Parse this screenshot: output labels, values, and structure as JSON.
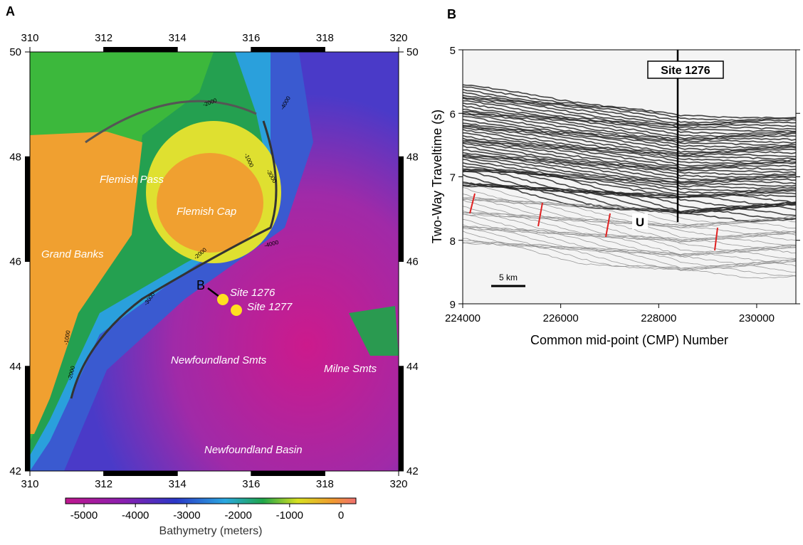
{
  "panel_a": {
    "label": "A",
    "xlim": [
      310,
      320
    ],
    "ylim": [
      42,
      50
    ],
    "xticks": [
      310,
      312,
      314,
      316,
      318,
      320
    ],
    "yticks": [
      42,
      44,
      46,
      48,
      50
    ],
    "places": [
      "Flemish Pass",
      "Flemish Cap",
      "Grand Banks",
      "Newfoundland Smts",
      "Milne Smts",
      "Newfoundland Basin"
    ],
    "sites": [
      "Site 1276",
      "Site 1277"
    ],
    "profile_label": "B",
    "contour_labels": [
      "-2000",
      "-4000",
      "-1000",
      "-3000",
      "-2000",
      "-4000",
      "-3000",
      "-1000",
      "-2000"
    ],
    "colorbar": {
      "title": "Bathymetry (meters)",
      "lim": [
        -5360,
        290
      ],
      "ticks": [
        -5000,
        -4000,
        -3000,
        -2000,
        -1000,
        0
      ]
    }
  },
  "panel_b": {
    "label": "B",
    "xlabel": "Common mid-point (CMP) Number",
    "ylabel": "Two-Way Traveltime (s)",
    "xlim": [
      224000,
      230800
    ],
    "ylim": [
      5,
      9
    ],
    "xticks": [
      224000,
      226000,
      228000,
      230000
    ],
    "yticks": [
      5,
      6,
      7,
      8,
      9
    ],
    "site_label": "Site 1276",
    "horizon_label": "U",
    "scale_label": "5 km"
  }
}
